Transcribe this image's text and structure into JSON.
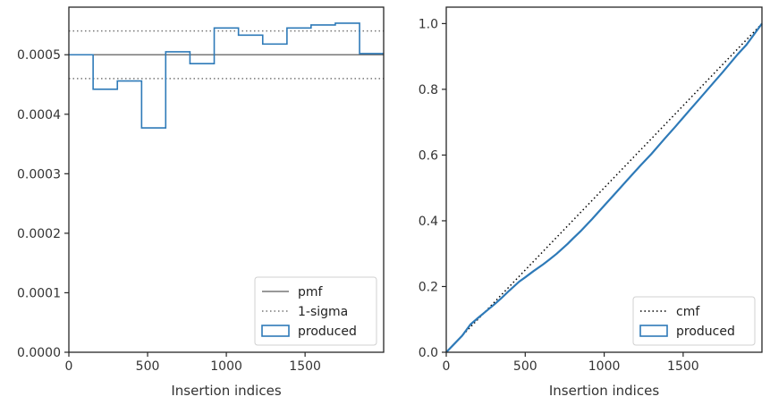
{
  "chart_data": [
    {
      "type": "line",
      "title": "",
      "xlabel": "Insertion indices",
      "ylabel": "",
      "xlim": [
        0,
        1999
      ],
      "ylim": [
        0,
        0.00058
      ],
      "xticks": [
        0,
        500,
        1000,
        1500
      ],
      "xtick_labels": [
        "0",
        "500",
        "1000",
        "1500"
      ],
      "yticks": [
        0,
        0.0001,
        0.0002,
        0.0003,
        0.0004,
        0.0005
      ],
      "ytick_labels": [
        "0.0000",
        "0.0001",
        "0.0002",
        "0.0003",
        "0.0004",
        "0.0005"
      ],
      "grid": false,
      "legend_position": "lower-right",
      "series": [
        {
          "name": "pmf",
          "style": "solid",
          "color": "#777777",
          "x": [
            0,
            1999
          ],
          "y": [
            0.0005,
            0.0005
          ]
        },
        {
          "name": "1-sigma",
          "style": "dotted",
          "color": "#777777",
          "bands": [
            0.00054,
            0.00046
          ]
        },
        {
          "name": "produced",
          "style": "step",
          "color": "#2e7ab8",
          "bin_edges": [
            0,
            154,
            308,
            462,
            615,
            769,
            923,
            1077,
            1231,
            1385,
            1538,
            1692,
            1846,
            1999
          ],
          "values": [
            0.0005,
            0.000442,
            0.000456,
            0.000377,
            0.000505,
            0.000485,
            0.000545,
            0.000533,
            0.000518,
            0.000545,
            0.00055,
            0.000553,
            0.000502
          ]
        }
      ]
    },
    {
      "type": "line",
      "title": "",
      "xlabel": "Insertion indices",
      "ylabel": "",
      "xlim": [
        0,
        1999
      ],
      "ylim": [
        0,
        1.05
      ],
      "xticks": [
        0,
        500,
        1000,
        1500
      ],
      "xtick_labels": [
        "0",
        "500",
        "1000",
        "1500"
      ],
      "yticks": [
        0,
        0.2,
        0.4,
        0.6,
        0.8,
        1.0
      ],
      "ytick_labels": [
        "0.0",
        "0.2",
        "0.4",
        "0.6",
        "0.8",
        "1.0"
      ],
      "grid": false,
      "legend_position": "lower-right",
      "series": [
        {
          "name": "cmf",
          "style": "dotted",
          "color": "#000000",
          "x": [
            0,
            1999
          ],
          "y": [
            0,
            1
          ]
        },
        {
          "name": "produced",
          "style": "step",
          "color": "#2e7ab8",
          "x": [
            0,
            50,
            100,
            154,
            200,
            250,
            308,
            350,
            400,
            462,
            500,
            550,
            615,
            650,
            700,
            769,
            800,
            850,
            923,
            1000,
            1077,
            1150,
            1231,
            1300,
            1385,
            1450,
            1538,
            1600,
            1692,
            1750,
            1846,
            1900,
            1999
          ],
          "y": [
            0,
            0.025,
            0.05,
            0.085,
            0.104,
            0.124,
            0.147,
            0.165,
            0.188,
            0.215,
            0.228,
            0.246,
            0.268,
            0.281,
            0.3,
            0.33,
            0.345,
            0.368,
            0.405,
            0.446,
            0.487,
            0.526,
            0.569,
            0.604,
            0.651,
            0.686,
            0.735,
            0.769,
            0.82,
            0.852,
            0.907,
            0.935,
            1.0
          ]
        }
      ]
    }
  ]
}
